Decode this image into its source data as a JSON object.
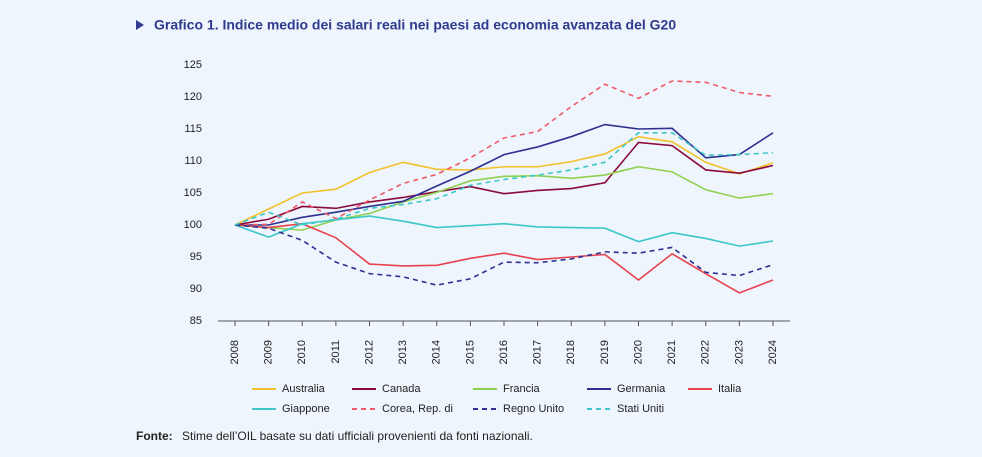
{
  "chart_data": {
    "type": "line",
    "title": "Grafico 1. Indice medio dei salari reali nei paesi ad economia avanzata del G20",
    "categories": [
      "2008",
      "2009",
      "2010",
      "2011",
      "2012",
      "2013",
      "2014",
      "2015",
      "2016",
      "2017",
      "2018",
      "2019",
      "2020",
      "2021",
      "2022",
      "2023",
      "2024"
    ],
    "ylim": [
      85,
      125
    ],
    "yticks": [
      85,
      90,
      95,
      100,
      105,
      110,
      115,
      120,
      125
    ],
    "series": [
      {
        "name": "Australia",
        "color": "#f2c12e",
        "dash": false,
        "values": [
          100,
          102.5,
          105,
          105.6,
          108.2,
          109.8,
          108.7,
          108.6,
          109.1,
          109.1,
          109.9,
          111.1,
          113.8,
          113.0,
          109.8,
          108.0,
          109.7
        ]
      },
      {
        "name": "Canada",
        "color": "#8b0a3c",
        "dash": false,
        "values": [
          100,
          100.9,
          102.9,
          102.6,
          103.6,
          104.3,
          105.2,
          106.0,
          104.9,
          105.4,
          105.7,
          106.6,
          112.9,
          112.4,
          108.6,
          108.1,
          109.3
        ]
      },
      {
        "name": "Francia",
        "color": "#8fd14f",
        "dash": false,
        "values": [
          100,
          99.6,
          99.2,
          100.8,
          101.8,
          103.6,
          105.1,
          106.9,
          107.6,
          107.7,
          107.3,
          107.8,
          109.1,
          108.3,
          105.5,
          104.2,
          104.9
        ]
      },
      {
        "name": "Germania",
        "color": "#2e3192",
        "dash": false,
        "values": [
          100,
          100.0,
          101.2,
          102.0,
          102.9,
          103.7,
          106.1,
          108.4,
          111.0,
          112.2,
          113.8,
          115.7,
          115.0,
          115.1,
          110.5,
          111.0,
          114.4
        ]
      },
      {
        "name": "Italia",
        "color": "#e8424f",
        "dash": false,
        "values": [
          100,
          99.6,
          100.2,
          98.0,
          93.9,
          93.6,
          93.7,
          94.8,
          95.6,
          94.6,
          95.0,
          95.4,
          91.4,
          95.5,
          92.4,
          89.4,
          91.4
        ]
      },
      {
        "name": "Giappone",
        "color": "#3cc8c8",
        "dash": false,
        "values": [
          100,
          98.1,
          100.2,
          100.8,
          101.4,
          100.6,
          99.6,
          99.9,
          100.2,
          99.7,
          99.6,
          99.5,
          97.4,
          98.8,
          97.9,
          96.7,
          97.5
        ]
      },
      {
        "name": "Corea, Rep. di",
        "color": "#f05a6a",
        "dash": true,
        "values": [
          100,
          100.1,
          103.6,
          101.0,
          103.9,
          106.5,
          107.9,
          110.5,
          113.6,
          114.6,
          118.5,
          122.0,
          119.8,
          122.5,
          122.3,
          120.7,
          120.1
        ]
      },
      {
        "name": "Regno Unito",
        "color": "#2e3192",
        "dash": true,
        "values": [
          100,
          99.5,
          97.6,
          94.2,
          92.4,
          91.9,
          90.6,
          91.6,
          94.2,
          94.1,
          94.7,
          95.8,
          95.6,
          96.5,
          92.6,
          92.1,
          93.8
        ]
      },
      {
        "name": "Stati Uniti",
        "color": "#3cc8c8",
        "dash": true,
        "values": [
          100,
          102.0,
          100.0,
          100.9,
          102.6,
          103.2,
          104.1,
          106.2,
          107.1,
          107.8,
          108.6,
          109.8,
          114.4,
          114.4,
          110.9,
          111.0,
          111.3
        ]
      }
    ]
  },
  "footer": {
    "label": "Fonte:",
    "text": "Stime dell’OIL basate su dati ufficiali provenienti da fonti nazionali."
  }
}
